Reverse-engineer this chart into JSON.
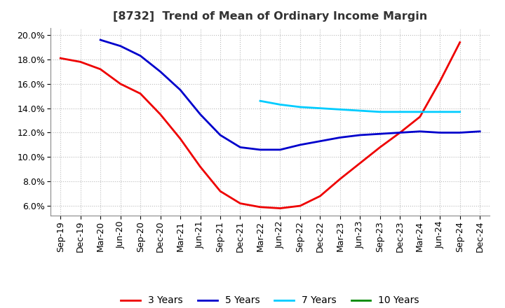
{
  "title": "[8732]  Trend of Mean of Ordinary Income Margin",
  "title_fontsize": 11.5,
  "title_fontweight": "bold",
  "background_color": "#ffffff",
  "plot_bg_color": "#ffffff",
  "grid_color": "#bbbbbb",
  "ylim": [
    0.052,
    0.206
  ],
  "yticks": [
    0.06,
    0.08,
    0.1,
    0.12,
    0.14,
    0.16,
    0.18,
    0.2
  ],
  "ytick_labels": [
    "6.0%",
    "8.0%",
    "10.0%",
    "12.0%",
    "14.0%",
    "16.0%",
    "18.0%",
    "20.0%"
  ],
  "xtick_labels": [
    "Sep-19",
    "Dec-19",
    "Mar-20",
    "Jun-20",
    "Sep-20",
    "Dec-20",
    "Mar-21",
    "Jun-21",
    "Sep-21",
    "Dec-21",
    "Mar-22",
    "Jun-22",
    "Sep-22",
    "Dec-22",
    "Mar-23",
    "Jun-23",
    "Sep-23",
    "Dec-23",
    "Mar-24",
    "Jun-24",
    "Sep-24",
    "Dec-24"
  ],
  "series": [
    {
      "name": "3 Years",
      "color": "#ee0000",
      "linewidth": 2.0,
      "y": [
        0.181,
        0.178,
        0.172,
        0.16,
        0.152,
        0.135,
        0.115,
        0.092,
        0.072,
        0.062,
        0.059,
        0.058,
        0.06,
        0.068,
        0.082,
        0.095,
        0.108,
        0.12,
        0.133,
        0.162,
        0.194,
        null
      ]
    },
    {
      "name": "5 Years",
      "color": "#0000cc",
      "linewidth": 2.0,
      "y": [
        null,
        null,
        0.196,
        0.191,
        0.183,
        0.17,
        0.155,
        0.135,
        0.118,
        0.108,
        0.106,
        0.106,
        0.11,
        0.113,
        0.116,
        0.118,
        0.119,
        0.12,
        0.121,
        0.12,
        0.12,
        0.121
      ]
    },
    {
      "name": "7 Years",
      "color": "#00ccff",
      "linewidth": 2.0,
      "y": [
        null,
        null,
        null,
        null,
        null,
        null,
        null,
        null,
        null,
        null,
        0.146,
        0.143,
        0.141,
        0.14,
        0.139,
        0.138,
        0.137,
        0.137,
        0.137,
        0.137,
        0.137,
        null
      ]
    },
    {
      "name": "10 Years",
      "color": "#008800",
      "linewidth": 2.0,
      "y": [
        null,
        null,
        null,
        null,
        null,
        null,
        null,
        null,
        null,
        null,
        null,
        null,
        null,
        null,
        null,
        null,
        null,
        null,
        null,
        null,
        null,
        null
      ]
    }
  ],
  "legend_fontsize": 10,
  "tick_fontsize": 9
}
